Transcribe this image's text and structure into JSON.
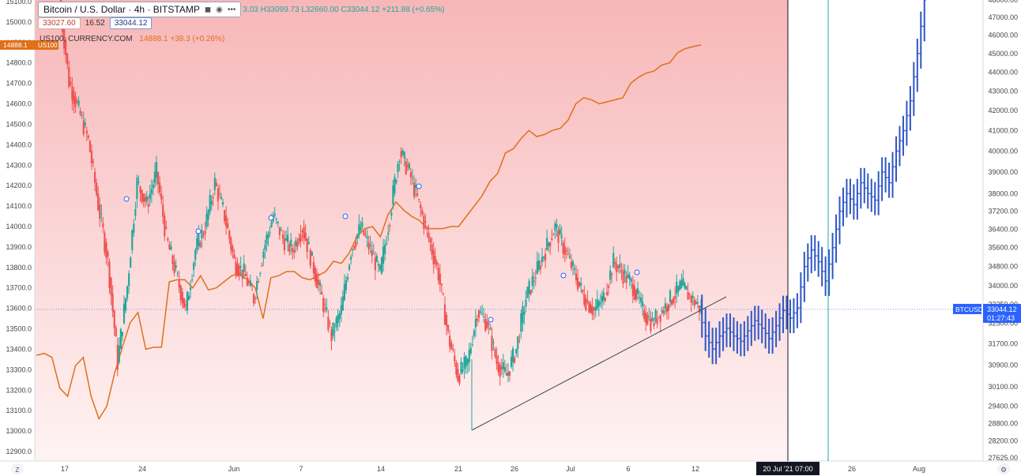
{
  "header": {
    "symbol_title": "Bitcoin / U.S. Dollar · 4h · BITSTAMP",
    "ohlc_text": "3.03  H33099.73  L32660.00  C33044.12  +211.88 (+0.65%)",
    "bid": "33027.60",
    "spread": "16.52",
    "ask": "33044.12",
    "overlay_name": "US100, CURRENCY.COM",
    "overlay_value": "14888.1  +38.3 (+0.26%)"
  },
  "icons": {
    "eye": "eye-icon",
    "more": "more-icon"
  },
  "tags": {
    "us100_price": "14888.1",
    "us100_symbol": "US100",
    "btc_symbol": "BTCUSD",
    "btc_price": "33044.12",
    "btc_countdown": "01:27:43",
    "time_cursor": "20 Jul '21  07:00",
    "timezone_btn": "Z",
    "settings_btn": "⚙"
  },
  "colors": {
    "bull": "#26a69a",
    "bear": "#ef5350",
    "projection": "#2f56c7",
    "overlay_line": "#e0701a",
    "background_top": "#f7b7b9",
    "background_bottom": "#fff3f3",
    "btc_tag": "#2962ff",
    "us100_tag": "#e0701a"
  },
  "chart_data": {
    "type": "line",
    "title": "Bitcoin / U.S. Dollar · 4h · BITSTAMP",
    "x_ticks": [
      "17",
      "24",
      "Jun",
      "7",
      "14",
      "21",
      "26",
      "Jul",
      "6",
      "12",
      "26",
      "Aug"
    ],
    "left_axis": {
      "label": "US100",
      "ticks": [
        "15100.0",
        "15000.0",
        "14900.0",
        "14800.0",
        "14700.0",
        "14600.0",
        "14500.0",
        "14400.0",
        "14300.0",
        "14200.0",
        "14100.0",
        "14000.0",
        "13900.0",
        "13800.0",
        "13700.0",
        "13600.0",
        "13500.0",
        "13400.0",
        "13300.0",
        "13200.0",
        "13100.0",
        "13000.0",
        "12900.0"
      ],
      "range": [
        12900,
        15100
      ]
    },
    "right_axis": {
      "label": "BTCUSD",
      "ticks": [
        "48000.00",
        "47000.00",
        "46000.00",
        "45000.00",
        "44000.00",
        "43000.00",
        "42000.00",
        "41000.00",
        "40000.00",
        "39000.00",
        "38000.00",
        "37200.00",
        "36400.00",
        "35600.00",
        "34800.00",
        "34000.00",
        "33250.00",
        "32500.00",
        "31700.00",
        "30900.00",
        "30100.00",
        "29400.00",
        "28800.00",
        "28200.00",
        "27625.00"
      ],
      "scale": "log"
    },
    "series": [
      {
        "name": "US100",
        "axis": "left",
        "values": [
          13370,
          13380,
          13360,
          13210,
          13170,
          13320,
          13360,
          13170,
          13060,
          13120,
          13280,
          13410,
          13530,
          13580,
          13400,
          13410,
          13410,
          13730,
          13740,
          13740,
          13700,
          13760,
          13690,
          13700,
          13730,
          13760,
          13770,
          13740,
          13700,
          13550,
          13750,
          13760,
          13780,
          13780,
          13750,
          13740,
          13760,
          13780,
          13830,
          13820,
          13870,
          13950,
          13990,
          14000,
          13950,
          14060,
          14120,
          14080,
          14050,
          14030,
          13990,
          13990,
          13990,
          14000,
          14000,
          14050,
          14100,
          14150,
          14220,
          14260,
          14360,
          14380,
          14430,
          14470,
          14440,
          14450,
          14470,
          14480,
          14520,
          14600,
          14630,
          14620,
          14600,
          14610,
          14620,
          14630,
          14700,
          14730,
          14750,
          14760,
          14790,
          14800,
          14850,
          14870,
          14880,
          14888
        ]
      },
      {
        "name": "BTCUSD",
        "axis": "right",
        "values": [
          48000,
          43500,
          42000,
          40500,
          37500,
          35000,
          31000,
          34000,
          38500,
          37500,
          39000,
          36000,
          34500,
          33000,
          35500,
          36500,
          38500,
          37000,
          35000,
          34500,
          33500,
          35500,
          37000,
          36000,
          35500,
          36500,
          35000,
          33500,
          32000,
          33000,
          35500,
          36500,
          35500,
          34500,
          37000,
          40000,
          39000,
          37500,
          36000,
          34500,
          32000,
          30500,
          31000,
          33000,
          32500,
          31000,
          30500,
          31500,
          33500,
          34500,
          35500,
          36500,
          35500,
          34500,
          33500,
          33000,
          33500,
          35000,
          34500,
          34000,
          33000,
          32500,
          33000,
          33500,
          34000,
          33500,
          33044
        ]
      },
      {
        "name": "Projection",
        "axis": "right",
        "values": [
          33044,
          32000,
          31500,
          32000,
          32300,
          32000,
          31800,
          32200,
          32600,
          32300,
          31900,
          32400,
          33000,
          32700,
          33100,
          34800,
          35500,
          35000,
          34200,
          35600,
          37200,
          38000,
          37500,
          38500,
          38000,
          37700,
          39000,
          38500,
          40000,
          41000,
          42500,
          45000,
          48000
        ]
      }
    ],
    "trendline": {
      "from": [
        "21",
        28600
      ],
      "to": [
        "12",
        33350
      ]
    },
    "vertical_markers": [
      "20 Jul '21  07:00",
      "26"
    ],
    "current_price_line": 33044.12,
    "grid": false,
    "legend": "top-left"
  }
}
